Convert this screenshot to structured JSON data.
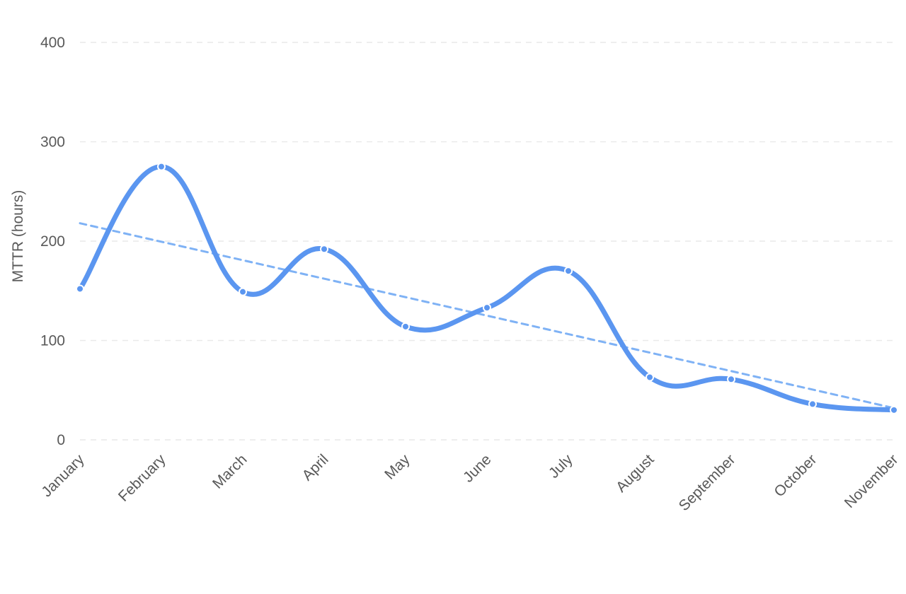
{
  "chart_data": {
    "type": "line",
    "categories": [
      "January",
      "February",
      "March",
      "April",
      "May",
      "June",
      "July",
      "August",
      "September",
      "October",
      "November"
    ],
    "series": [
      {
        "values": [
          152,
          275,
          149,
          192,
          114,
          133,
          170,
          63,
          61,
          36,
          30
        ],
        "color": "#5b96f0"
      }
    ],
    "trendline": {
      "start": 218,
      "end": 32,
      "style": "dashed",
      "color": "#7fb2f5"
    },
    "ylabel": "MTTR (hours)",
    "xlabel": "",
    "ylim": [
      0,
      400
    ],
    "yticks": [
      0,
      100,
      200,
      300,
      400
    ],
    "grid": true,
    "legend": "none"
  }
}
